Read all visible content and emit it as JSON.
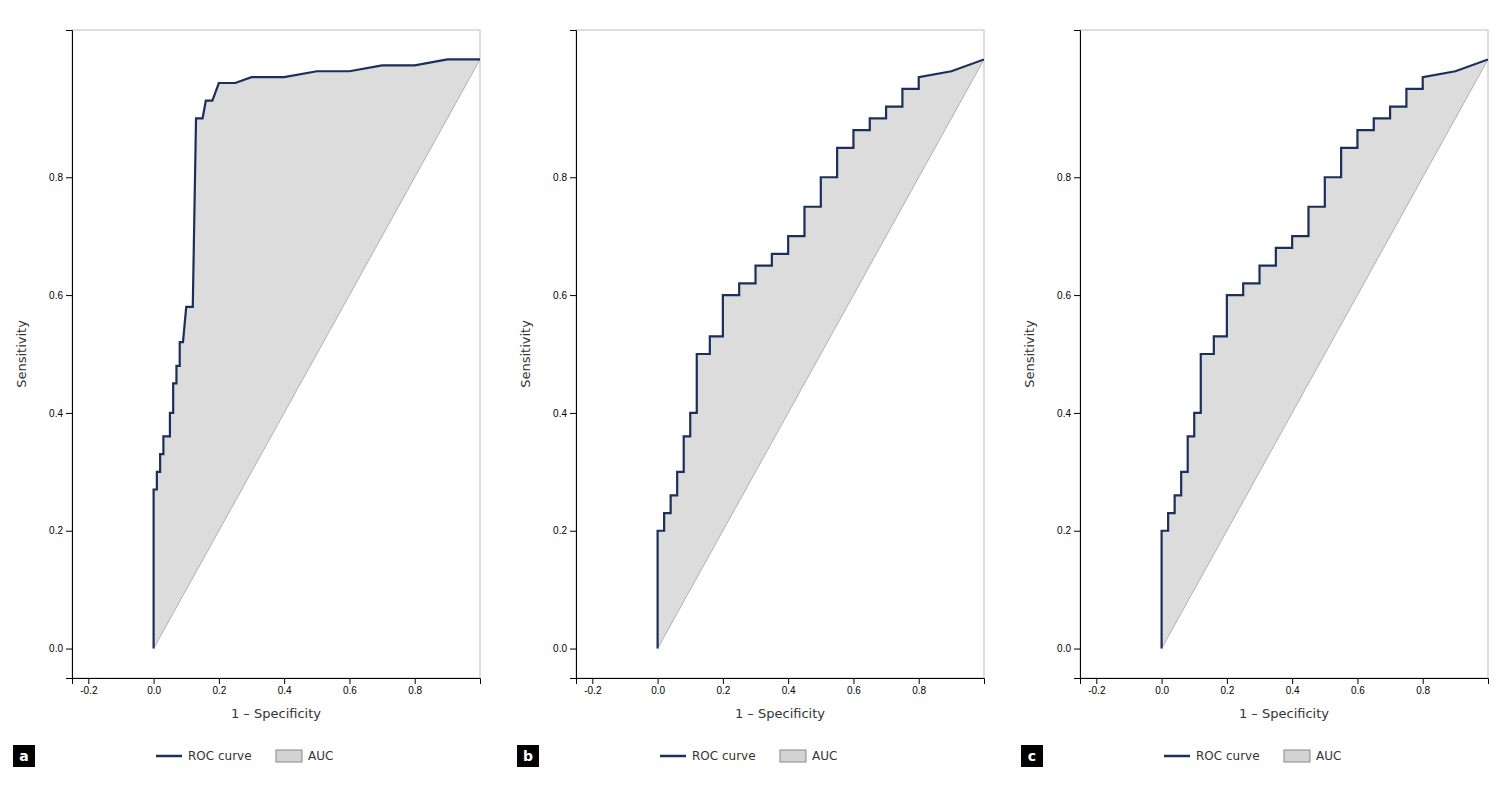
{
  "chart_data": [
    {
      "type": "line",
      "x_label": "1 – Specificity",
      "y_label": "Sensitivity",
      "xlim": [
        -0.25,
        1.0
      ],
      "ylim": [
        -0.05,
        1.05
      ],
      "xticks": [
        -0.2,
        {
          "value": 0.0,
          "label": "0.0"
        },
        0.2,
        0.4,
        0.6,
        0.8
      ],
      "yticks": [
        {
          "value": 0.0,
          "label": "0.0"
        },
        0.2,
        0.4,
        0.6,
        0.8
      ],
      "grid": false,
      "legend": "bottom",
      "annotations": [
        "a"
      ],
      "series": [
        {
          "name": "ROC curve",
          "type": "line",
          "color": "#1a2f5a",
          "x": [
            0.0,
            0.0,
            0.01,
            0.01,
            0.02,
            0.02,
            0.03,
            0.03,
            0.04,
            0.05,
            0.05,
            0.06,
            0.06,
            0.07,
            0.07,
            0.08,
            0.08,
            0.09,
            0.1,
            0.12,
            0.13,
            0.15,
            0.16,
            0.18,
            0.2,
            0.25,
            0.3,
            0.4,
            0.5,
            0.6,
            0.7,
            0.8,
            0.9,
            1.0
          ],
          "values": [
            0.0,
            0.27,
            0.27,
            0.3,
            0.3,
            0.33,
            0.33,
            0.36,
            0.36,
            0.36,
            0.4,
            0.4,
            0.45,
            0.45,
            0.48,
            0.48,
            0.52,
            0.52,
            0.58,
            0.58,
            0.9,
            0.9,
            0.93,
            0.93,
            0.96,
            0.96,
            0.97,
            0.97,
            0.98,
            0.98,
            0.99,
            0.99,
            1.0,
            1.0
          ]
        },
        {
          "name": "AUC",
          "type": "area",
          "color": "#d3d3d3",
          "x": [
            0.0,
            0.0,
            0.01,
            0.01,
            0.02,
            0.02,
            0.03,
            0.03,
            0.04,
            0.05,
            0.05,
            0.06,
            0.06,
            0.07,
            0.07,
            0.08,
            0.08,
            0.09,
            0.1,
            0.12,
            0.13,
            0.15,
            0.16,
            0.18,
            0.2,
            0.25,
            0.3,
            0.4,
            0.5,
            0.6,
            0.7,
            0.8,
            0.9,
            1.0
          ],
          "values": [
            0.0,
            0.27,
            0.27,
            0.3,
            0.3,
            0.33,
            0.33,
            0.36,
            0.36,
            0.36,
            0.4,
            0.4,
            0.45,
            0.45,
            0.48,
            0.48,
            0.52,
            0.52,
            0.58,
            0.58,
            0.9,
            0.9,
            0.93,
            0.93,
            0.96,
            0.96,
            0.97,
            0.97,
            0.98,
            0.98,
            0.99,
            0.99,
            1.0,
            1.0
          ]
        },
        {
          "type": "line",
          "color": "#b0b0b0",
          "x": [
            0,
            1
          ],
          "values": [
            0,
            1
          ]
        }
      ]
    },
    {
      "type": "line",
      "x_label": "1 – Specificity",
      "y_label": "Sensitivity",
      "xlim": [
        -0.25,
        1.0
      ],
      "ylim": [
        -0.05,
        1.05
      ],
      "xticks": [
        -0.2,
        {
          "value": 0.0,
          "label": "0.0"
        },
        0.2,
        0.4,
        0.6,
        0.8
      ],
      "yticks": [
        {
          "value": 0.0,
          "label": "0.0"
        },
        0.2,
        0.4,
        0.6,
        0.8
      ],
      "grid": false,
      "legend": "bottom",
      "annotations": [
        "b"
      ],
      "series": [
        {
          "name": "ROC curve",
          "type": "line",
          "color": "#1a2f5a",
          "x": [
            0.0,
            0.0,
            0.02,
            0.02,
            0.04,
            0.04,
            0.06,
            0.06,
            0.08,
            0.08,
            0.1,
            0.1,
            0.12,
            0.12,
            0.16,
            0.16,
            0.2,
            0.2,
            0.25,
            0.25,
            0.3,
            0.3,
            0.35,
            0.35,
            0.4,
            0.4,
            0.45,
            0.45,
            0.5,
            0.5,
            0.55,
            0.55,
            0.6,
            0.6,
            0.65,
            0.65,
            0.7,
            0.7,
            0.75,
            0.75,
            0.8,
            0.8,
            0.9,
            1.0
          ],
          "values": [
            0.0,
            0.2,
            0.2,
            0.23,
            0.23,
            0.26,
            0.26,
            0.3,
            0.3,
            0.36,
            0.36,
            0.4,
            0.4,
            0.5,
            0.5,
            0.53,
            0.53,
            0.6,
            0.6,
            0.62,
            0.62,
            0.65,
            0.65,
            0.67,
            0.67,
            0.7,
            0.7,
            0.75,
            0.75,
            0.8,
            0.8,
            0.85,
            0.85,
            0.88,
            0.88,
            0.9,
            0.9,
            0.92,
            0.92,
            0.95,
            0.95,
            0.97,
            0.98,
            1.0
          ]
        },
        {
          "name": "AUC",
          "type": "area",
          "color": "#d3d3d3",
          "x": [
            0.0,
            0.0,
            0.02,
            0.02,
            0.04,
            0.04,
            0.06,
            0.06,
            0.08,
            0.08,
            0.1,
            0.1,
            0.12,
            0.12,
            0.16,
            0.16,
            0.2,
            0.2,
            0.25,
            0.25,
            0.3,
            0.3,
            0.35,
            0.35,
            0.4,
            0.4,
            0.45,
            0.45,
            0.5,
            0.5,
            0.55,
            0.55,
            0.6,
            0.6,
            0.65,
            0.65,
            0.7,
            0.7,
            0.75,
            0.75,
            0.8,
            0.8,
            0.9,
            1.0
          ],
          "values": [
            0.0,
            0.2,
            0.2,
            0.23,
            0.23,
            0.26,
            0.26,
            0.3,
            0.3,
            0.36,
            0.36,
            0.4,
            0.4,
            0.5,
            0.5,
            0.53,
            0.53,
            0.6,
            0.6,
            0.62,
            0.62,
            0.65,
            0.65,
            0.67,
            0.67,
            0.7,
            0.7,
            0.75,
            0.75,
            0.8,
            0.8,
            0.85,
            0.85,
            0.88,
            0.88,
            0.9,
            0.9,
            0.92,
            0.92,
            0.95,
            0.95,
            0.97,
            0.98,
            1.0
          ]
        },
        {
          "type": "line",
          "color": "#b0b0b0",
          "x": [
            0,
            1
          ],
          "values": [
            0,
            1
          ]
        }
      ]
    },
    {
      "type": "line",
      "x_label": "1 – Specificity",
      "y_label": "Sensitivity",
      "xlim": [
        -0.25,
        1.0
      ],
      "ylim": [
        -0.05,
        1.05
      ],
      "xticks": [
        -0.2,
        {
          "value": 0.0,
          "label": "0.0"
        },
        0.2,
        0.4,
        0.6,
        0.8
      ],
      "yticks": [
        {
          "value": 0.0,
          "label": "0.0"
        },
        0.2,
        0.4,
        0.6,
        0.8
      ],
      "grid": false,
      "legend": "bottom",
      "annotations": [
        "c"
      ],
      "series": [
        {
          "name": "ROC curve",
          "type": "line",
          "color": "#1a2f5a",
          "x": [
            0.0,
            0.0,
            0.02,
            0.02,
            0.04,
            0.04,
            0.06,
            0.06,
            0.08,
            0.08,
            0.1,
            0.1,
            0.12,
            0.12,
            0.16,
            0.16,
            0.2,
            0.2,
            0.25,
            0.25,
            0.3,
            0.3,
            0.35,
            0.35,
            0.4,
            0.4,
            0.45,
            0.45,
            0.5,
            0.5,
            0.55,
            0.55,
            0.6,
            0.6,
            0.65,
            0.65,
            0.7,
            0.7,
            0.75,
            0.75,
            0.8,
            0.8,
            0.9,
            1.0
          ],
          "values": [
            0.0,
            0.2,
            0.2,
            0.23,
            0.23,
            0.26,
            0.26,
            0.3,
            0.3,
            0.36,
            0.36,
            0.4,
            0.4,
            0.5,
            0.5,
            0.53,
            0.53,
            0.6,
            0.6,
            0.62,
            0.62,
            0.65,
            0.65,
            0.68,
            0.68,
            0.7,
            0.7,
            0.75,
            0.75,
            0.8,
            0.8,
            0.85,
            0.85,
            0.88,
            0.88,
            0.9,
            0.9,
            0.92,
            0.92,
            0.95,
            0.95,
            0.97,
            0.98,
            1.0
          ]
        },
        {
          "name": "AUC",
          "type": "area",
          "color": "#d3d3d3",
          "x": [
            0.0,
            0.0,
            0.02,
            0.02,
            0.04,
            0.04,
            0.06,
            0.06,
            0.08,
            0.08,
            0.1,
            0.1,
            0.12,
            0.12,
            0.16,
            0.16,
            0.2,
            0.2,
            0.25,
            0.25,
            0.3,
            0.3,
            0.35,
            0.35,
            0.4,
            0.4,
            0.45,
            0.45,
            0.5,
            0.5,
            0.55,
            0.55,
            0.6,
            0.6,
            0.65,
            0.65,
            0.7,
            0.7,
            0.75,
            0.75,
            0.8,
            0.8,
            0.9,
            1.0
          ],
          "values": [
            0.0,
            0.2,
            0.2,
            0.23,
            0.23,
            0.26,
            0.26,
            0.3,
            0.3,
            0.36,
            0.36,
            0.4,
            0.4,
            0.5,
            0.5,
            0.53,
            0.53,
            0.6,
            0.6,
            0.62,
            0.62,
            0.65,
            0.65,
            0.68,
            0.68,
            0.7,
            0.7,
            0.75,
            0.75,
            0.8,
            0.8,
            0.85,
            0.85,
            0.88,
            0.88,
            0.9,
            0.9,
            0.92,
            0.92,
            0.95,
            0.95,
            0.97,
            0.98,
            1.0
          ]
        },
        {
          "type": "line",
          "color": "#b0b0b0",
          "x": [
            0,
            1
          ],
          "values": [
            0,
            1
          ]
        }
      ]
    }
  ]
}
